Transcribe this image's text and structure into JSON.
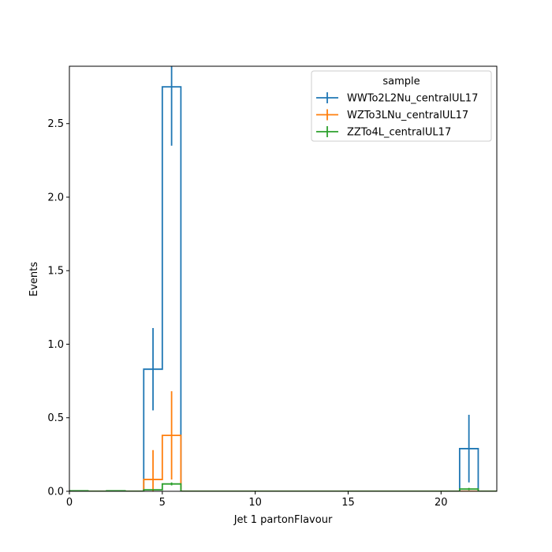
{
  "chart_data": {
    "type": "histogram-step",
    "xlabel": "Jet 1 partonFlavour",
    "ylabel": "Events",
    "xlim": [
      0,
      23
    ],
    "ylim": [
      0,
      2.89
    ],
    "xticks": [
      {
        "value": 0,
        "label": "0"
      },
      {
        "value": 5,
        "label": "5"
      },
      {
        "value": 10,
        "label": "10"
      },
      {
        "value": 15,
        "label": "15"
      },
      {
        "value": 20,
        "label": "20"
      }
    ],
    "yticks": [
      {
        "value": 0,
        "label": "0.0"
      },
      {
        "value": 0.5,
        "label": "0.5"
      },
      {
        "value": 1.0,
        "label": "1.0"
      },
      {
        "value": 1.5,
        "label": "1.5"
      },
      {
        "value": 2.0,
        "label": "2.0"
      },
      {
        "value": 2.5,
        "label": "2.5"
      }
    ],
    "bin_edges": [
      0,
      1,
      2,
      3,
      4,
      5,
      6,
      7,
      8,
      9,
      10,
      11,
      12,
      13,
      14,
      15,
      16,
      17,
      18,
      19,
      20,
      21,
      22,
      23
    ],
    "legend": {
      "title": "sample",
      "position": "upper right"
    },
    "grid": false,
    "series": [
      {
        "name": "WWTo2L2Nu_centralUL17",
        "color": "#1f77b4",
        "values": [
          0,
          0,
          0,
          0,
          0.83,
          2.75,
          0,
          0,
          0,
          0,
          0,
          0,
          0,
          0,
          0,
          0,
          0,
          0,
          0,
          0,
          0,
          0.29,
          0
        ],
        "errors": [
          0,
          0,
          0,
          0,
          0.28,
          0.4,
          0,
          0,
          0,
          0,
          0,
          0,
          0,
          0,
          0,
          0,
          0,
          0,
          0,
          0,
          0,
          0.23,
          0
        ]
      },
      {
        "name": "WZTo3LNu_centralUL17",
        "color": "#ff7f0e",
        "values": [
          0,
          0,
          0,
          0,
          0.08,
          0.38,
          0,
          0,
          0,
          0,
          0,
          0,
          0,
          0,
          0,
          0,
          0,
          0,
          0,
          0,
          0,
          0,
          0
        ],
        "errors": [
          0,
          0,
          0,
          0,
          0.2,
          0.3,
          0,
          0,
          0,
          0,
          0,
          0,
          0,
          0,
          0,
          0,
          0,
          0,
          0,
          0,
          0,
          0,
          0
        ]
      },
      {
        "name": "ZZTo4L_centralUL17",
        "color": "#2ca02c",
        "values": [
          0.003,
          0,
          0.003,
          0,
          0.01,
          0.05,
          0,
          0,
          0,
          0,
          0,
          0,
          0,
          0,
          0,
          0,
          0,
          0,
          0,
          0,
          0,
          0.015,
          0
        ],
        "errors": [
          0.002,
          0,
          0.002,
          0,
          0.005,
          0.01,
          0,
          0,
          0,
          0,
          0,
          0,
          0,
          0,
          0,
          0,
          0,
          0,
          0,
          0,
          0,
          0.008,
          0
        ]
      }
    ]
  }
}
